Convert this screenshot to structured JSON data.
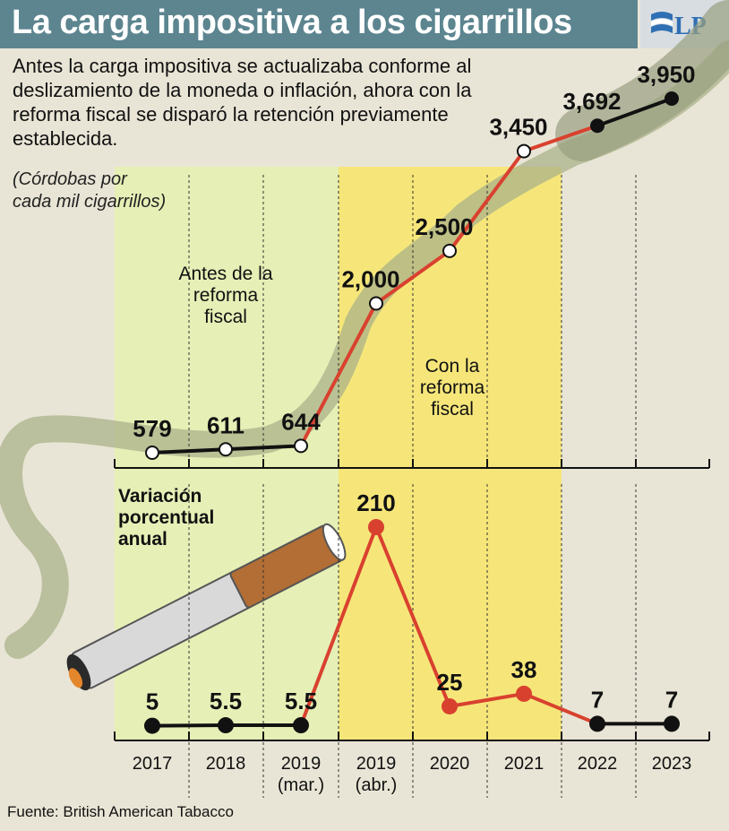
{
  "header": {
    "title": "La carga impositiva a los cigarrillos",
    "logo_text": "LP"
  },
  "intro": "Antes la carga impositiva se actualizaba conforme al deslizamiento de la moneda o inflación, ahora con la reforma fiscal se disparó la retención previamente establecida.",
  "unit_note": "(Córdobas por cada mil cigarrillos)",
  "source": "Fuente: British American Tabacco",
  "colors": {
    "header_bg": "#5c8590",
    "background": "#e9e5d6",
    "before_zone": "#e6efb6",
    "after_zone": "#f6e67a",
    "red_line": "#d9412f",
    "black_line": "#111111",
    "smoke": "#aab197"
  },
  "chart_data": [
    {
      "type": "line",
      "title": "",
      "categories": [
        "2017",
        "2018",
        "2019 (mar.)",
        "2019 (abr.)",
        "2020",
        "2021",
        "2022",
        "2023"
      ],
      "values": [
        579,
        611,
        644,
        2000,
        2500,
        3450,
        3692,
        3950
      ],
      "value_labels": [
        "579",
        "611",
        "644",
        "2,000",
        "2,500",
        "3,450",
        "3,692",
        "3,950"
      ],
      "ylabel": "(Córdobas por cada mil cigarrillos)",
      "ylim": [
        0,
        4000
      ],
      "annotations": [
        "Antes de la reforma fiscal",
        "Con la reforma fiscal"
      ],
      "annotation_lines": [
        [
          "Antes de la",
          "reforma",
          "fiscal"
        ],
        [
          "Con la",
          "reforma",
          "fiscal"
        ]
      ],
      "highlight_range": [
        "2019 (abr.)",
        "2021"
      ],
      "grid": false
    },
    {
      "type": "line",
      "title": "Variación porcentual anual",
      "title_lines": [
        "Variación",
        "porcentual",
        "anual"
      ],
      "categories": [
        "2017",
        "2018",
        "2019 (mar.)",
        "2019 (abr.)",
        "2020",
        "2021",
        "2022",
        "2023"
      ],
      "values": [
        5,
        5.5,
        5.5,
        210,
        25,
        38,
        7,
        7
      ],
      "value_labels": [
        "5",
        "5.5",
        "5.5",
        "210",
        "25",
        "38",
        "7",
        "7"
      ],
      "ylim": [
        0,
        220
      ],
      "grid": false
    }
  ],
  "x_axis": {
    "tick_lines": [
      [
        "2017"
      ],
      [
        "2018"
      ],
      [
        "2019",
        "(mar.)"
      ],
      [
        "2019",
        "(abr.)"
      ],
      [
        "2020"
      ],
      [
        "2021"
      ],
      [
        "2022"
      ],
      [
        "2023"
      ]
    ]
  }
}
